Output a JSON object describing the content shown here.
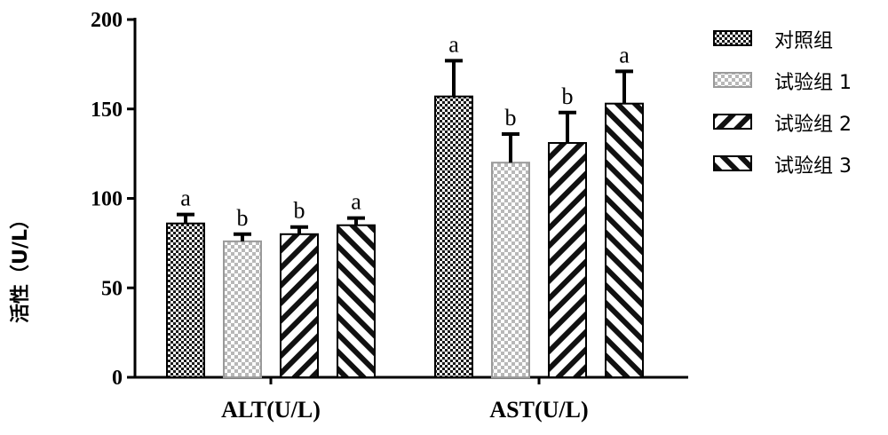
{
  "chart_data": {
    "type": "bar",
    "ylabel": "活性（U/L）",
    "xlabel": "",
    "ylim": [
      0,
      200
    ],
    "yticks": [
      0,
      50,
      100,
      150,
      200
    ],
    "categories": [
      "ALT(U/L)",
      "AST(U/L)"
    ],
    "legend_position": "right",
    "grid": false,
    "series": [
      {
        "name": "对照组",
        "pattern": "checker-dark",
        "values": [
          86,
          157
        ],
        "errors": [
          5,
          20
        ],
        "labels": [
          "a",
          "a"
        ]
      },
      {
        "name": "试验组 1",
        "pattern": "checker-light",
        "values": [
          76,
          120
        ],
        "errors": [
          4,
          16
        ],
        "labels": [
          "b",
          "b"
        ]
      },
      {
        "name": "试验组 2",
        "pattern": "stripe-forward",
        "values": [
          80,
          131
        ],
        "errors": [
          4,
          17
        ],
        "labels": [
          "b",
          "b"
        ]
      },
      {
        "name": "试验组 3",
        "pattern": "stripe-back",
        "values": [
          85,
          153
        ],
        "errors": [
          4,
          18
        ],
        "labels": [
          "a",
          "a"
        ]
      }
    ]
  }
}
